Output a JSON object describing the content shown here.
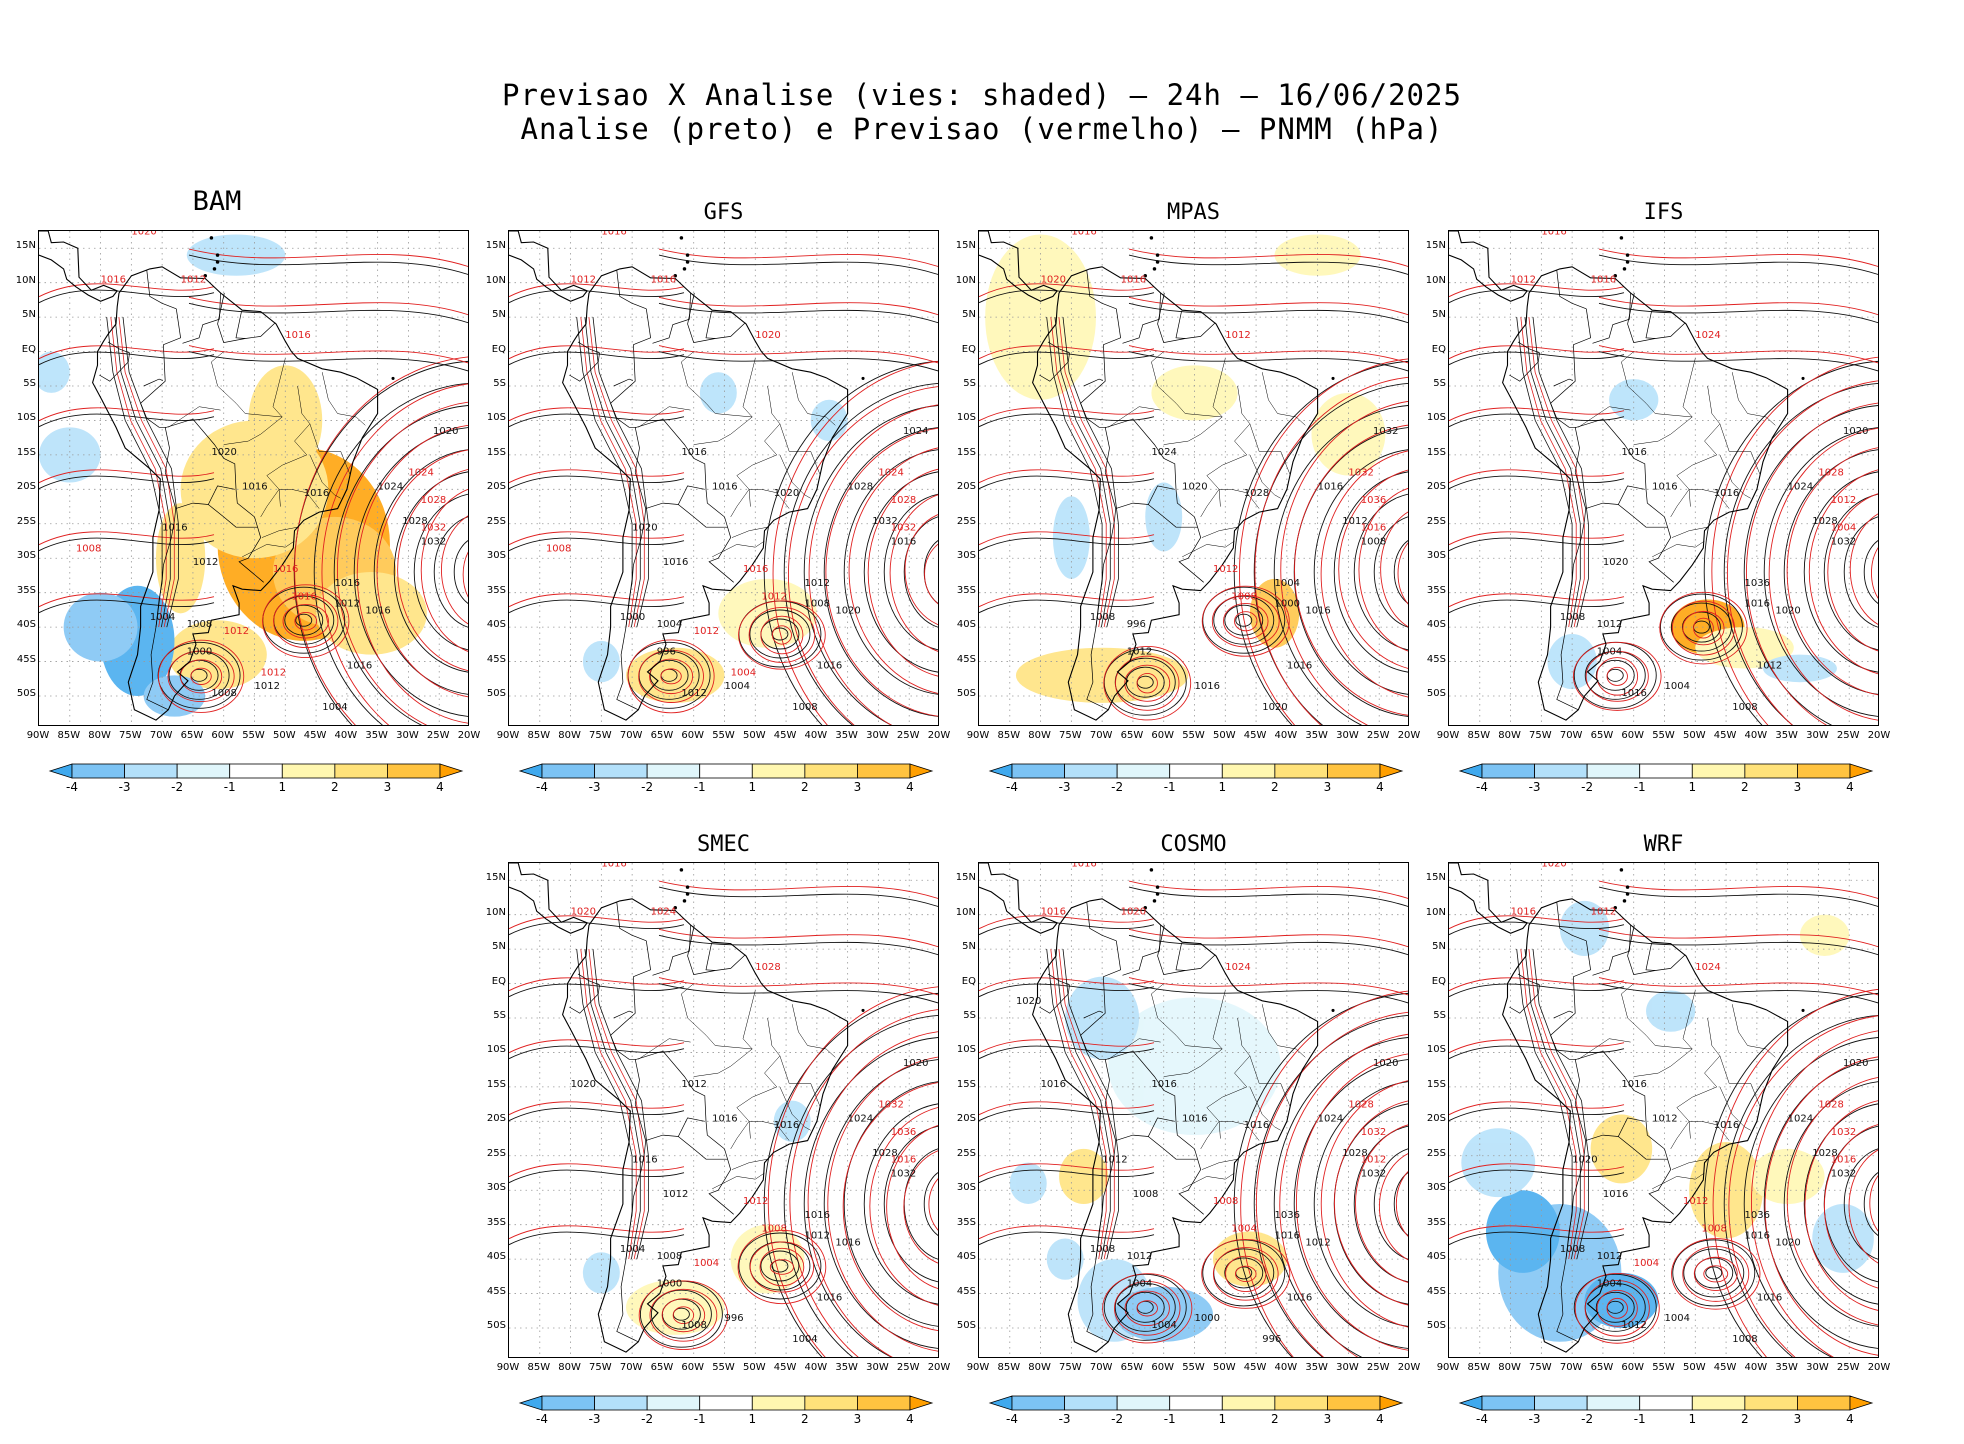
{
  "figure": {
    "title_line1": "Previsao X Analise (vies: shaded) – 24h – 16/06/2025",
    "title_line2": "Analise (preto) e Previsao (vermelho) – PNMM (hPa)"
  },
  "axes": {
    "lat_labels": [
      "15N",
      "10N",
      "5N",
      "EQ",
      "5S",
      "10S",
      "15S",
      "20S",
      "25S",
      "30S",
      "35S",
      "40S",
      "45S",
      "50S"
    ],
    "lon_labels": [
      "90W",
      "85W",
      "80W",
      "75W",
      "70W",
      "65W",
      "60W",
      "55W",
      "50W",
      "45W",
      "40W",
      "35W",
      "30W",
      "25W",
      "20W"
    ]
  },
  "colorbar": {
    "ticks": [
      "-4",
      "-3",
      "-2",
      "-1",
      "1",
      "2",
      "3",
      "4"
    ],
    "colors": [
      "#3fa9ee",
      "#7cc3f4",
      "#b3e0fa",
      "#e0f6fb",
      "#ffffff",
      "#fff7b0",
      "#ffe27a",
      "#ffc340",
      "#ff9f00"
    ]
  },
  "colors": {
    "analysis": "#111111",
    "forecast": "#e02020"
  },
  "panels": [
    {
      "model": "BAM",
      "analysis_labels": [
        "1016",
        "1016",
        "1016",
        "1020",
        "1016",
        "1020",
        "1024",
        "1028",
        "1032",
        "1016",
        "1012",
        "1008",
        "1004",
        "1000",
        "1012",
        "1004",
        "1008",
        "1012",
        "1016"
      ],
      "forecast_labels": [
        "1020",
        "1016",
        "1012",
        "1016",
        "1024",
        "1028",
        "1032",
        "1016",
        "1016",
        "1012",
        "1008",
        "1012"
      ]
    },
    {
      "model": "GFS",
      "analysis_labels": [
        "1020",
        "1016",
        "1016",
        "1016",
        "1020",
        "1024",
        "1028",
        "1032",
        "1016",
        "1012",
        "1008",
        "1004",
        "1000",
        "996",
        "1004",
        "1008",
        "1012",
        "1016",
        "1020"
      ],
      "forecast_labels": [
        "1016",
        "1012",
        "1016",
        "1020",
        "1024",
        "1028",
        "1032",
        "1016",
        "1012",
        "1012",
        "1008",
        "1004"
      ]
    },
    {
      "model": "MPAS",
      "analysis_labels": [
        "1016",
        "1016",
        "1020",
        "1024",
        "1028",
        "1032",
        "1016",
        "1012",
        "1008",
        "1004",
        "1000",
        "996",
        "1008",
        "1012",
        "1016",
        "1020"
      ],
      "forecast_labels": [
        "1016",
        "1020",
        "1016",
        "1012",
        "1032",
        "1036",
        "1016",
        "1012",
        "1008"
      ]
    },
    {
      "model": "IFS",
      "analysis_labels": [
        "1020",
        "1012",
        "1016",
        "1016",
        "1016",
        "1020",
        "1024",
        "1028",
        "1032",
        "1036",
        "1016",
        "1012",
        "1008",
        "1004",
        "1004",
        "1008",
        "1016",
        "1020"
      ],
      "forecast_labels": [
        "1016",
        "1012",
        "1016",
        "1024",
        "1028",
        "1012",
        "1004"
      ]
    },
    {
      "model": "SMEC",
      "analysis_labels": [
        "1016",
        "1016",
        "1016",
        "1012",
        "1016",
        "1020",
        "1024",
        "1028",
        "1032",
        "1016",
        "1012",
        "1008",
        "1004",
        "1000",
        "996",
        "1004",
        "1008",
        "1012",
        "1016",
        "1020"
      ],
      "forecast_labels": [
        "1016",
        "1020",
        "1024",
        "1028",
        "1032",
        "1036",
        "1016",
        "1012",
        "1008",
        "1004"
      ]
    },
    {
      "model": "COSMO",
      "analysis_labels": [
        "1012",
        "1016",
        "1016",
        "1016",
        "1016",
        "1020",
        "1024",
        "1028",
        "1032",
        "1036",
        "1016",
        "1012",
        "1008",
        "1004",
        "1000",
        "996",
        "1004",
        "1008",
        "1012",
        "1016",
        "1020"
      ],
      "forecast_labels": [
        "1016",
        "1016",
        "1020",
        "1024",
        "1028",
        "1032",
        "1012",
        "1008",
        "1004"
      ]
    },
    {
      "model": "WRF",
      "analysis_labels": [
        "1020",
        "1016",
        "1012",
        "1016",
        "1016",
        "1020",
        "1024",
        "1028",
        "1032",
        "1036",
        "1016",
        "1012",
        "1008",
        "1004",
        "1004",
        "1008",
        "1012",
        "1016",
        "1020"
      ],
      "forecast_labels": [
        "1020",
        "1016",
        "1012",
        "1024",
        "1028",
        "1032",
        "1016",
        "1012",
        "1008",
        "1004"
      ]
    }
  ]
}
